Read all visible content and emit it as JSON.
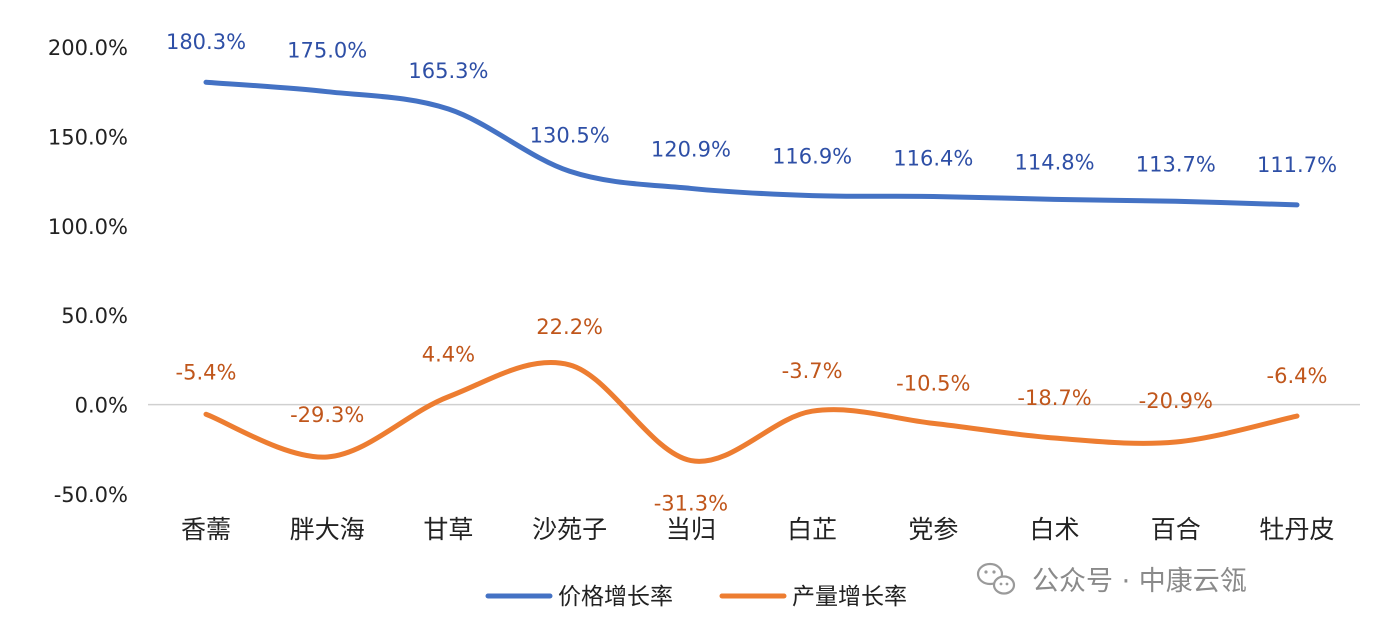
{
  "chart_data": {
    "type": "line",
    "categories": [
      "香薷",
      "胖大海",
      "甘草",
      "沙苑子",
      "当归",
      "白芷",
      "党参",
      "白术",
      "百合",
      "牡丹皮"
    ],
    "series": [
      {
        "name": "价格增长率",
        "values": [
          180.3,
          175.0,
          165.3,
          130.5,
          120.9,
          116.9,
          116.4,
          114.8,
          113.7,
          111.7
        ],
        "labels": [
          "180.3%",
          "175.0%",
          "165.3%",
          "130.5%",
          "120.9%",
          "116.9%",
          "116.4%",
          "114.8%",
          "113.7%",
          "111.7%"
        ],
        "color": "#4472C4",
        "label_color": "#2E4FA6"
      },
      {
        "name": "产量增长率",
        "values": [
          -5.4,
          -29.3,
          4.4,
          22.2,
          -31.3,
          -3.7,
          -10.5,
          -18.7,
          -20.9,
          -6.4
        ],
        "labels": [
          "-5.4%",
          "-29.3%",
          "4.4%",
          "22.2%",
          "-31.3%",
          "-3.7%",
          "-10.5%",
          "-18.7%",
          "-20.9%",
          "-6.4%"
        ],
        "color": "#ED7D31",
        "label_color": "#C0561B"
      }
    ],
    "ylim": [
      -50,
      200
    ],
    "yticks": [
      200,
      150,
      100,
      50,
      0,
      -50
    ],
    "ytick_labels": [
      "200.0%",
      "150.0%",
      "100.0%",
      "50.0%",
      "0.0%",
      "-50.0%"
    ],
    "legend_position": "bottom-center",
    "grid": false
  },
  "watermark": {
    "text": "公众号 · 中康云瓴",
    "icon": "wechat-icon"
  }
}
